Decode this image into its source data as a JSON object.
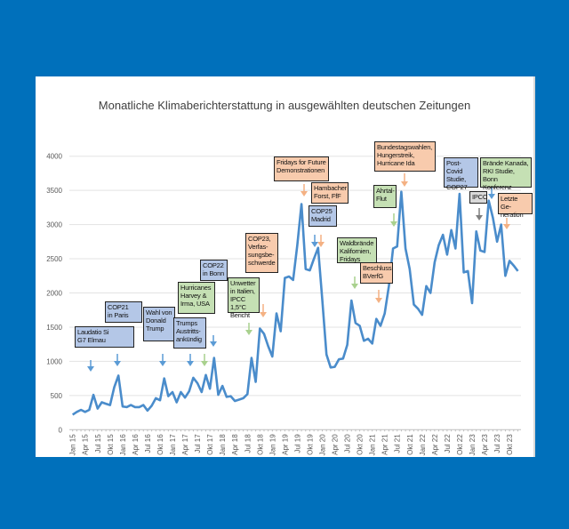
{
  "colors": {
    "background": "#0070bb",
    "line": "#4a8ccb",
    "blue": "#b4c7e7",
    "green": "#c5e0b4",
    "orange": "#f8cbad",
    "gray": "#d9d9d9",
    "arrow_blue": "#5b9bd5",
    "arrow_green": "#a9d18e",
    "arrow_orange": "#f4b183",
    "arrow_gray": "#7f7f7f"
  },
  "chart_data": {
    "type": "line",
    "title": "Monatliche Klimaberichterstattung in ausgewählten deutschen Zeitungen",
    "xlabel": "",
    "ylabel": "",
    "ylim": [
      0,
      4000
    ],
    "yticks": [
      0,
      500,
      1000,
      1500,
      2000,
      2500,
      3000,
      3500,
      4000
    ],
    "grid": true,
    "xtick_labels": [
      "Jan 15",
      "Apr 15",
      "Jul 15",
      "Okt 15",
      "Jan 16",
      "Apr 16",
      "Jul 16",
      "Okt 16",
      "Jan 17",
      "Apr 17",
      "Jul 17",
      "Okt 17",
      "Jan 18",
      "Apr 18",
      "Jul 18",
      "Okt 18",
      "Jan 19",
      "Apr 19",
      "Jul 19",
      "Okt 19",
      "Jan 20",
      "Apr 20",
      "Jul 20",
      "Okt 20",
      "Jan 21",
      "Apr 21",
      "Jul 21",
      "Okt 21",
      "Jan 22",
      "Apr 22",
      "Jul 22",
      "Okt 22",
      "Jan 23",
      "Apr 23",
      "Jul 23",
      "Okt 23"
    ],
    "x_start": "Jan 15",
    "x_end": "Dez 23",
    "values": [
      220,
      260,
      290,
      260,
      290,
      510,
      310,
      400,
      380,
      360,
      620,
      790,
      340,
      330,
      360,
      330,
      330,
      360,
      280,
      350,
      460,
      430,
      750,
      490,
      550,
      400,
      550,
      470,
      560,
      760,
      680,
      550,
      800,
      600,
      1050,
      510,
      640,
      480,
      490,
      420,
      440,
      460,
      520,
      1050,
      700,
      1480,
      1400,
      1220,
      1070,
      1700,
      1440,
      2220,
      2240,
      2190,
      2700,
      3300,
      2350,
      2330,
      2500,
      2660,
      1900,
      1100,
      910,
      920,
      1030,
      1040,
      1240,
      1890,
      1560,
      1520,
      1300,
      1330,
      1260,
      1620,
      1520,
      1700,
      2100,
      2650,
      2680,
      3480,
      2650,
      2350,
      1830,
      1770,
      1680,
      2100,
      2000,
      2450,
      2700,
      2850,
      2560,
      2920,
      2650,
      3450,
      2300,
      2320,
      1850,
      2900,
      2620,
      2600,
      3350,
      3100,
      2750,
      3000,
      2250,
      2470,
      2400,
      2320
    ],
    "annotations": [
      {
        "text": "Laudatio Si\nG7 Elmau",
        "category": "blue",
        "arrow": "blue"
      },
      {
        "text": "COP21\nin Paris",
        "category": "blue",
        "arrow": "blue"
      },
      {
        "text": "Wahl von\nDonald\nTrump",
        "category": "blue",
        "arrow": "blue"
      },
      {
        "text": "Trumps\nAustritts-\nankündig",
        "category": "blue",
        "arrow": "blue"
      },
      {
        "text": "Hurricanes\nHarvey &\nIrma, USA",
        "category": "green",
        "arrow": "green"
      },
      {
        "text": "COP22\nin Bonn",
        "category": "blue",
        "arrow": "blue"
      },
      {
        "text": "Unwetter\nin Italien,\nIPCC 1,5°C\nBericht",
        "category": "green",
        "arrow": "green"
      },
      {
        "text": "COP23,\nVerfas-\nsungsbe-\nschwerde",
        "category": "orange",
        "arrow": "orange"
      },
      {
        "text": "Fridays for Future\nDemonstrationen",
        "category": "orange",
        "arrow": "orange"
      },
      {
        "text": "Hambacher\nForst, FfF",
        "category": "orange",
        "arrow": "orange"
      },
      {
        "text": "COP25\nMadrid",
        "category": "blue",
        "arrow": "blue"
      },
      {
        "text": "Waldbrände\nKalifornien,\nFridays",
        "category": "green",
        "arrow": "green"
      },
      {
        "text": "Beschluss\nBVerfG",
        "category": "orange",
        "arrow": "orange"
      },
      {
        "text": "Ahrtal-\nFlut",
        "category": "green",
        "arrow": "green"
      },
      {
        "text": "Bundestagswahlen,\nHungerstreik,\nHurricane Ida",
        "category": "orange",
        "arrow": "orange"
      },
      {
        "text": "Post-Covid\nStudie,\nCOP27",
        "category": "blue",
        "arrow": ""
      },
      {
        "text": "IPCC",
        "category": "gray",
        "arrow": "gray"
      },
      {
        "text": "Brände Kanada,\nRKI Studie, Bonn\nKonferenz",
        "category": "green",
        "arrow": "blue"
      },
      {
        "text": "Letzte Ge-\nneration",
        "category": "orange",
        "arrow": "orange"
      }
    ]
  }
}
